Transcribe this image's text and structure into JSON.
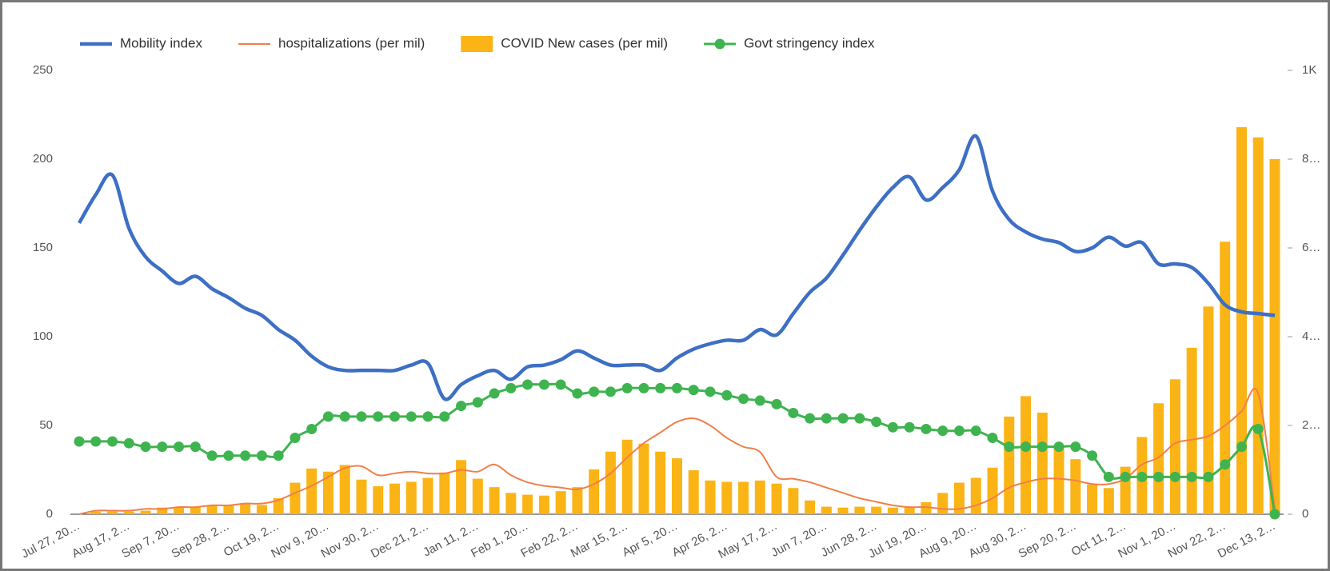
{
  "chart_data": {
    "type": "combo",
    "categories": [
      "Jul 27, 20…",
      null,
      null,
      "Aug 17, 2…",
      null,
      null,
      "Sep 7, 20…",
      null,
      null,
      "Sep 28, 2…",
      null,
      null,
      "Oct 19, 2…",
      null,
      null,
      "Nov 9, 20…",
      null,
      null,
      "Nov 30, 2…",
      null,
      null,
      "Dec 21, 2…",
      null,
      null,
      "Jan 11, 2…",
      null,
      null,
      "Feb 1, 20…",
      null,
      null,
      "Feb 22, 2…",
      null,
      null,
      "Mar 15, 2…",
      null,
      null,
      "Apr 5, 20…",
      null,
      null,
      "Apr 26, 2…",
      null,
      null,
      "May 17, 2…",
      null,
      null,
      "Jun 7, 20…",
      null,
      null,
      "Jun 28, 2…",
      null,
      null,
      "Jul 19, 20…",
      null,
      null,
      "Aug 9, 20…",
      null,
      null,
      "Aug 30, 2…",
      null,
      null,
      "Sep 20, 2…",
      null,
      null,
      "Oct 11, 2…",
      null,
      null,
      "Nov 1, 20…",
      null,
      null,
      "Nov 22, 2…",
      null,
      null,
      "Dec 13, 2…"
    ],
    "series": [
      {
        "name": "Mobility index",
        "type": "line",
        "color": "#3d6fc4",
        "width": 4.5,
        "values": [
          164,
          180,
          191,
          161,
          145,
          137,
          130,
          134,
          127,
          122,
          116,
          112,
          104,
          98,
          89,
          83,
          81,
          81,
          81,
          81,
          84,
          85,
          65,
          73,
          78,
          81,
          76,
          83,
          84,
          87,
          92,
          88,
          84,
          84,
          84,
          81,
          88,
          93,
          96,
          98,
          98,
          104,
          101,
          113,
          125,
          133,
          146,
          160,
          173,
          184,
          190,
          177,
          184,
          194,
          213,
          182,
          166,
          159,
          155,
          153,
          148,
          150,
          156,
          151,
          153,
          141,
          141,
          139,
          130,
          118,
          114,
          113,
          112
        ]
      },
      {
        "name": "hospitalizations (per mil)",
        "type": "line",
        "color": "#f07f4a",
        "width": 2,
        "values": [
          0,
          2,
          2,
          2,
          3,
          3,
          4,
          4,
          5,
          5,
          6,
          6,
          8,
          12,
          16,
          21,
          26,
          27,
          22,
          23,
          24,
          23,
          23,
          25,
          24,
          28,
          22,
          18,
          16,
          15,
          14,
          17,
          23,
          32,
          40,
          46,
          52,
          54,
          50,
          43,
          38,
          35,
          21,
          20,
          18,
          15,
          12,
          9,
          7,
          5,
          4,
          4,
          3,
          3,
          5,
          9,
          15,
          18,
          20,
          20,
          19,
          17,
          17,
          20,
          28,
          32,
          40,
          42,
          44,
          50,
          58,
          68,
          3
        ]
      },
      {
        "name": "COVID New cases (per mil)",
        "type": "bar",
        "color": "#fbb416",
        "axis": "y2",
        "values": [
          0,
          6,
          6,
          6,
          8,
          15,
          15,
          15,
          19,
          19,
          25,
          21,
          36,
          71,
          103,
          96,
          111,
          78,
          63,
          69,
          73,
          82,
          94,
          122,
          80,
          61,
          48,
          44,
          42,
          52,
          61,
          101,
          141,
          168,
          159,
          141,
          126,
          99,
          76,
          73,
          73,
          76,
          69,
          59,
          31,
          17,
          15,
          17,
          17,
          15,
          17,
          27,
          48,
          71,
          82,
          105,
          220,
          266,
          229,
          151,
          124,
          67,
          59,
          107,
          174,
          250,
          304,
          375,
          468,
          614,
          872,
          849,
          800
        ]
      },
      {
        "name": "Govt stringency index",
        "type": "line",
        "color": "#3fb34f",
        "width": 3,
        "markers": true,
        "values": [
          41,
          41,
          41,
          40,
          38,
          38,
          38,
          38,
          33,
          33,
          33,
          33,
          33,
          43,
          48,
          55,
          55,
          55,
          55,
          55,
          55,
          55,
          55,
          61,
          63,
          68,
          71,
          73,
          73,
          73,
          68,
          69,
          69,
          71,
          71,
          71,
          71,
          70,
          69,
          67,
          65,
          64,
          62,
          57,
          54,
          54,
          54,
          54,
          52,
          49,
          49,
          48,
          47,
          47,
          47,
          43,
          38,
          38,
          38,
          38,
          38,
          33,
          21,
          21,
          21,
          21,
          21,
          21,
          21,
          28,
          38,
          48,
          0
        ]
      }
    ],
    "ylim": [
      0,
      250
    ],
    "yticks": [
      0,
      50,
      100,
      150,
      200,
      250
    ],
    "y2lim": [
      0,
      1000
    ],
    "y2ticks": [
      0,
      {
        "value": 200,
        "label": "2…"
      },
      {
        "value": 400,
        "label": "4…"
      },
      {
        "value": 600,
        "label": "6…"
      },
      {
        "value": 800,
        "label": "8…"
      },
      {
        "value": 1000,
        "label": "1K"
      }
    ],
    "grid": false,
    "legend": "top"
  }
}
